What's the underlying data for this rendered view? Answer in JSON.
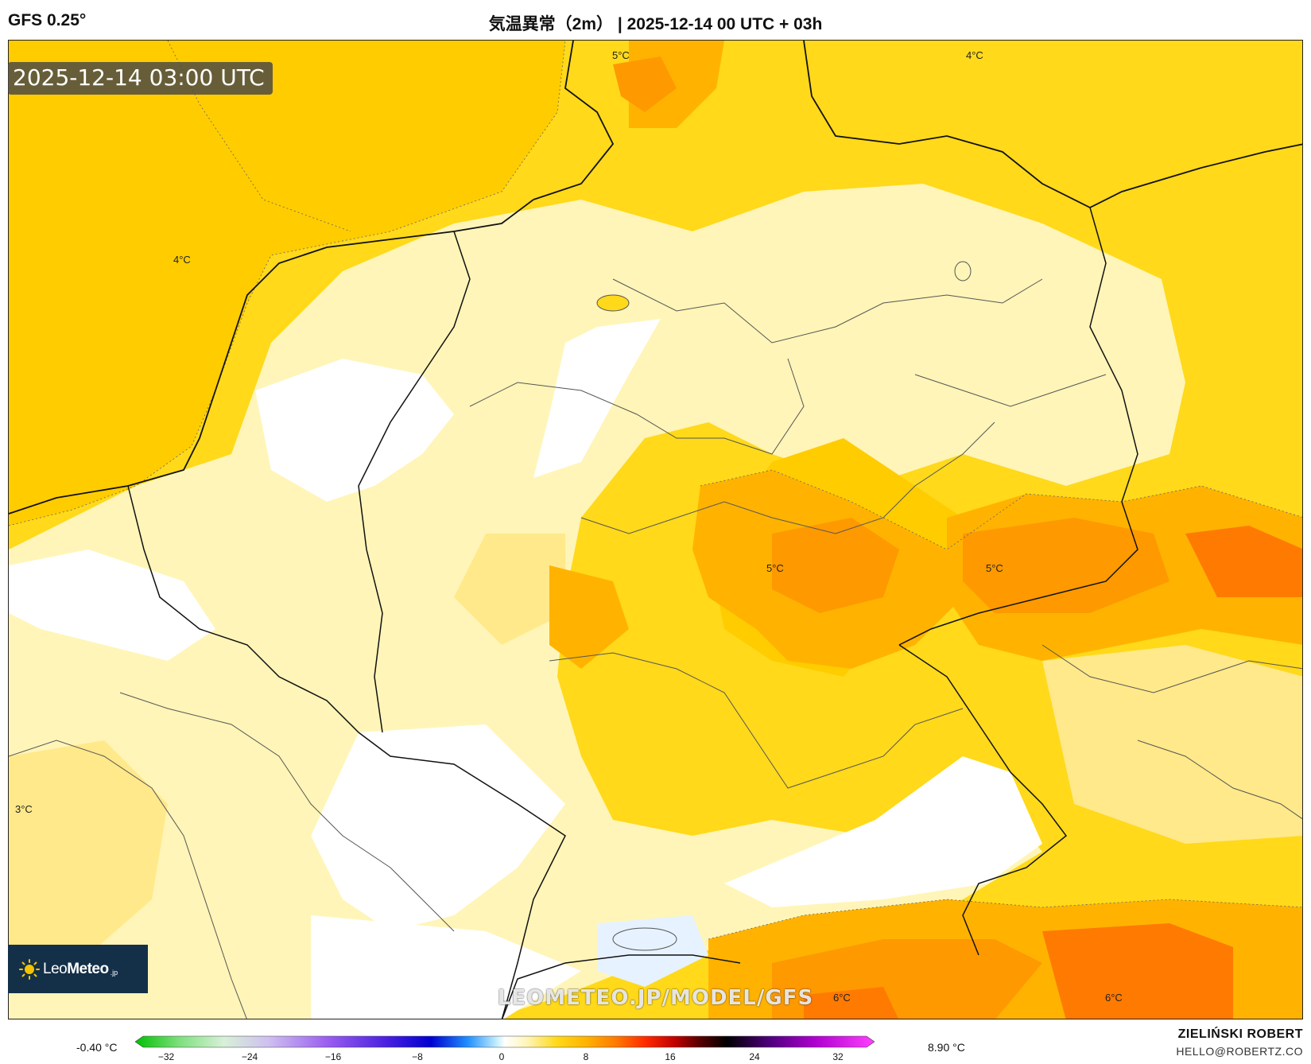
{
  "header": {
    "model": "GFS 0.25°",
    "title": "気温異常（2m） | 2025-12-14 00 UTC + 03h"
  },
  "valid_time": "2025-12-14 03:00 UTC",
  "logo": {
    "leo": "Leo",
    "meteo": "Meteo",
    "jp": ".jp"
  },
  "watermark": "LEOMETEO.JP/MODEL/GFS",
  "contour_labels": [
    {
      "text": "5°C"
    },
    {
      "text": "4°C"
    },
    {
      "text": "4°C"
    },
    {
      "text": "5°C"
    },
    {
      "text": "5°C"
    },
    {
      "text": "3°C"
    },
    {
      "text": "6°C"
    },
    {
      "text": "6°C"
    }
  ],
  "legend": {
    "min_label": "-0.40 °C",
    "max_label": "8.90 °C",
    "ticks": [
      "−32",
      "−24",
      "−16",
      "−8",
      "0",
      "8",
      "16",
      "24",
      "32"
    ]
  },
  "author": {
    "name": "ZIELIŃSKI ROBERT",
    "email": "HELLO@ROBERTZ.CO"
  },
  "colors": {
    "white": "#ffffff",
    "pale_yellow": "#fff5b8",
    "light_yellow": "#ffe98a",
    "yellow": "#ffd91a",
    "gold": "#ffcc00",
    "light_orange": "#ffb300",
    "orange": "#ff9900",
    "dark_orange": "#ff7a00"
  }
}
